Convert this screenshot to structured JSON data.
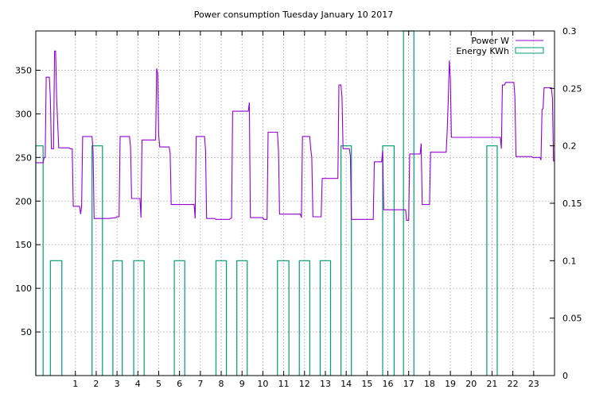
{
  "chart_data": {
    "type": "line",
    "title": "Power consumption Tuesday January 10 2017",
    "xlabel": "",
    "ylabel": "",
    "y2label": "",
    "xlim": [
      -0.9,
      24.0
    ],
    "ylim": [
      0,
      395
    ],
    "y2lim": [
      0,
      0.3
    ],
    "x_ticks": [
      1,
      2,
      3,
      4,
      5,
      6,
      7,
      8,
      9,
      10,
      11,
      12,
      13,
      14,
      15,
      16,
      17,
      18,
      19,
      20,
      21,
      22,
      23
    ],
    "y_ticks": [
      50,
      100,
      150,
      200,
      250,
      300,
      350
    ],
    "y2_ticks": [
      0,
      0.05,
      0.1,
      0.15,
      0.2,
      0.25,
      0.3
    ],
    "y2_tick_labels": [
      "0",
      "0.05",
      "0.1",
      "0.15",
      "0.2",
      "0.25",
      "0.3"
    ],
    "grid": true,
    "legend_position": "top-right",
    "colors": {
      "power": "#9400d3",
      "energy": "#009e73",
      "grid": "#a0a0a0"
    },
    "series": [
      {
        "name": "Power W",
        "axis": "left",
        "style": "line",
        "points": [
          [
            -0.9,
            244
          ],
          [
            -0.55,
            244
          ],
          [
            -0.5,
            250
          ],
          [
            -0.45,
            250
          ],
          [
            -0.4,
            342
          ],
          [
            -0.25,
            342
          ],
          [
            -0.2,
            318
          ],
          [
            -0.15,
            260
          ],
          [
            -0.05,
            260
          ],
          [
            0.0,
            372
          ],
          [
            0.05,
            372
          ],
          [
            0.1,
            318
          ],
          [
            0.2,
            261
          ],
          [
            0.7,
            261
          ],
          [
            0.75,
            260
          ],
          [
            0.85,
            260
          ],
          [
            0.9,
            194
          ],
          [
            1.2,
            194
          ],
          [
            1.25,
            185
          ],
          [
            1.3,
            194
          ],
          [
            1.35,
            274
          ],
          [
            1.8,
            274
          ],
          [
            1.85,
            257
          ],
          [
            1.9,
            180
          ],
          [
            2.6,
            180
          ],
          [
            2.95,
            181
          ],
          [
            3.0,
            182
          ],
          [
            3.1,
            182
          ],
          [
            3.15,
            274
          ],
          [
            3.6,
            274
          ],
          [
            3.65,
            262
          ],
          [
            3.7,
            203
          ],
          [
            4.1,
            203
          ],
          [
            4.15,
            181
          ],
          [
            4.2,
            270
          ],
          [
            4.85,
            270
          ],
          [
            4.9,
            352
          ],
          [
            4.95,
            346
          ],
          [
            5.0,
            275
          ],
          [
            5.05,
            262
          ],
          [
            5.5,
            262
          ],
          [
            5.55,
            255
          ],
          [
            5.6,
            196
          ],
          [
            6.7,
            196
          ],
          [
            6.75,
            180
          ],
          [
            6.8,
            274
          ],
          [
            7.2,
            274
          ],
          [
            7.25,
            258
          ],
          [
            7.3,
            180
          ],
          [
            7.7,
            180
          ],
          [
            7.75,
            179
          ],
          [
            8.4,
            179
          ],
          [
            8.5,
            181
          ],
          [
            8.55,
            303
          ],
          [
            9.3,
            303
          ],
          [
            9.35,
            313
          ],
          [
            9.4,
            181
          ],
          [
            10.0,
            181
          ],
          [
            10.05,
            179
          ],
          [
            10.2,
            179
          ],
          [
            10.25,
            279
          ],
          [
            10.7,
            279
          ],
          [
            10.75,
            257
          ],
          [
            10.8,
            185
          ],
          [
            11.8,
            185
          ],
          [
            11.85,
            181
          ],
          [
            11.9,
            274
          ],
          [
            12.25,
            274
          ],
          [
            12.3,
            260
          ],
          [
            12.35,
            250
          ],
          [
            12.4,
            182
          ],
          [
            12.8,
            182
          ],
          [
            12.85,
            226
          ],
          [
            13.6,
            226
          ],
          [
            13.65,
            333
          ],
          [
            13.75,
            333
          ],
          [
            13.8,
            319
          ],
          [
            13.85,
            260
          ],
          [
            14.15,
            260
          ],
          [
            14.2,
            252
          ],
          [
            14.25,
            179
          ],
          [
            15.3,
            179
          ],
          [
            15.35,
            245
          ],
          [
            15.7,
            245
          ],
          [
            15.75,
            258
          ],
          [
            15.8,
            190
          ],
          [
            16.85,
            190
          ],
          [
            16.9,
            178
          ],
          [
            17.0,
            178
          ],
          [
            17.05,
            254
          ],
          [
            17.55,
            254
          ],
          [
            17.6,
            266
          ],
          [
            17.65,
            196
          ],
          [
            18.0,
            196
          ],
          [
            18.05,
            256
          ],
          [
            18.8,
            256
          ],
          [
            18.85,
            280
          ],
          [
            18.9,
            317
          ],
          [
            18.95,
            361
          ],
          [
            19.0,
            340
          ],
          [
            19.05,
            273
          ],
          [
            21.4,
            273
          ],
          [
            21.45,
            260
          ],
          [
            21.5,
            333
          ],
          [
            21.6,
            333
          ],
          [
            21.65,
            336
          ],
          [
            22.05,
            336
          ],
          [
            22.1,
            320
          ],
          [
            22.15,
            251
          ],
          [
            22.9,
            251
          ],
          [
            22.95,
            250
          ],
          [
            23.3,
            250
          ],
          [
            23.35,
            247
          ],
          [
            23.4,
            305
          ],
          [
            23.45,
            306
          ],
          [
            23.5,
            330
          ],
          [
            23.85,
            330
          ],
          [
            23.9,
            318
          ],
          [
            23.95,
            246
          ],
          [
            24.0,
            246
          ],
          [
            24.2,
            246
          ]
        ]
      },
      {
        "name": "Energy KWh",
        "axis": "right",
        "style": "steps",
        "segments": [
          [
            -0.9,
            -0.55,
            0.2
          ],
          [
            -0.2,
            0.35,
            0.1
          ],
          [
            1.8,
            2.3,
            0.2
          ],
          [
            2.8,
            3.25,
            0.1
          ],
          [
            3.8,
            4.3,
            0.1
          ],
          [
            5.75,
            6.25,
            0.1
          ],
          [
            7.75,
            8.25,
            0.1
          ],
          [
            8.75,
            9.25,
            0.1
          ],
          [
            10.7,
            11.25,
            0.1
          ],
          [
            11.75,
            12.25,
            0.1
          ],
          [
            12.75,
            13.25,
            0.1
          ],
          [
            13.75,
            14.25,
            0.2
          ],
          [
            15.75,
            16.3,
            0.2
          ],
          [
            16.75,
            17.25,
            0.3
          ],
          [
            20.75,
            21.25,
            0.2
          ]
        ]
      }
    ]
  }
}
